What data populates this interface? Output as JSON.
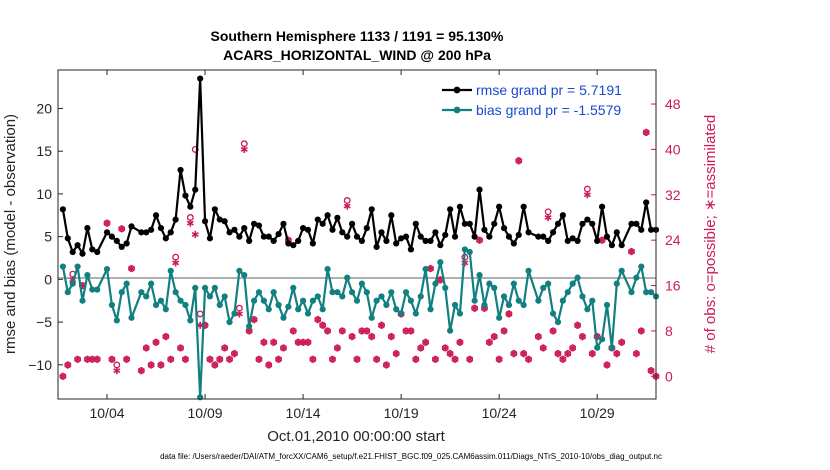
{
  "chart_data": {
    "type": "line",
    "title": "Southern Hemisphere 1133 / 1191 = 95.130%",
    "subtitle": "ACARS_HORIZONTAL_WIND @ 200 hPa",
    "xlabel": "Oct.01,2010 00:00:00 start",
    "ylabel": "rmse and bias (model - observation)",
    "y2label": "# of obs: o=possible; ∗=assimilated",
    "footnote": "data file: /Users/raeder/DAI/ATM_forcXX/CAM6_setup/f.e21.FHIST_BGC.f09_025.CAM6assim.011/Diags_NTrS_2010-10/obs_diag_output.nc",
    "x_unit": "days since Oct.01,2010 00:00:00",
    "xlim": [
      0.5,
      31.0
    ],
    "ylim": [
      -14,
      24.5
    ],
    "y2lim": [
      -4,
      54
    ],
    "xticks": [
      3,
      8,
      13,
      18,
      23,
      28
    ],
    "xticklabels": [
      "10/04",
      "10/09",
      "10/14",
      "10/19",
      "10/24",
      "10/29"
    ],
    "yticks": [
      -10,
      -5,
      0,
      5,
      10,
      15,
      20
    ],
    "yticklabels": [
      "−10",
      "−5",
      "0",
      "5",
      "10",
      "15",
      "20"
    ],
    "y2ticks": [
      0,
      8,
      16,
      24,
      32,
      40,
      48
    ],
    "y2ticklabels": [
      "0",
      "8",
      "16",
      "24",
      "32",
      "40",
      "48"
    ],
    "series": [
      {
        "name": "rmse grand pr = 5.7191",
        "color": "#000000",
        "marker": "circle",
        "x": [
          0.75,
          1.0,
          1.25,
          1.5,
          1.75,
          2.0,
          2.25,
          2.5,
          3.0,
          3.25,
          3.5,
          3.75,
          4.0,
          4.25,
          4.75,
          5.0,
          5.25,
          5.5,
          5.75,
          6.0,
          6.25,
          6.5,
          6.75,
          7.0,
          7.25,
          7.5,
          7.75,
          8.0,
          8.25,
          8.5,
          8.75,
          9.0,
          9.25,
          9.5,
          9.75,
          10.0,
          10.25,
          10.5,
          10.75,
          11.0,
          11.25,
          11.5,
          11.75,
          12.0,
          12.25,
          12.5,
          12.75,
          13.0,
          13.25,
          13.5,
          13.75,
          14.0,
          14.25,
          14.5,
          14.75,
          15.0,
          15.25,
          15.5,
          15.75,
          16.0,
          16.25,
          16.5,
          16.75,
          17.0,
          17.25,
          17.5,
          17.75,
          18.0,
          18.25,
          18.5,
          18.75,
          19.0,
          19.25,
          19.5,
          19.75,
          20.0,
          20.25,
          20.5,
          20.75,
          21.0,
          21.25,
          21.5,
          21.75,
          22.0,
          22.25,
          22.5,
          22.75,
          23.0,
          23.25,
          23.5,
          23.75,
          24.0,
          24.25,
          24.5,
          25.0,
          25.25,
          25.5,
          25.75,
          26.0,
          26.25,
          26.5,
          26.75,
          27.0,
          27.25,
          27.5,
          27.75,
          28.0,
          28.25,
          28.5,
          28.75,
          29.0,
          29.25,
          29.75,
          30.0,
          30.25,
          30.5,
          30.75,
          31.0
        ],
        "y": [
          8.2,
          4.8,
          3.2,
          4.0,
          3.0,
          6.0,
          3.5,
          3.2,
          5.5,
          5.0,
          4.5,
          3.8,
          4.2,
          6.2,
          5.5,
          5.5,
          5.8,
          7.5,
          6.0,
          4.8,
          5.5,
          7.0,
          12.8,
          9.8,
          8.5,
          10.5,
          23.5,
          6.8,
          4.8,
          8.2,
          7.0,
          6.8,
          5.5,
          5.8,
          5.0,
          6.0,
          4.5,
          6.5,
          6.3,
          5.0,
          5.0,
          4.5,
          5.3,
          6.5,
          4.2,
          4.0,
          4.5,
          6.0,
          5.8,
          4.2,
          7.0,
          6.5,
          7.5,
          5.8,
          7.2,
          5.5,
          5.0,
          6.5,
          5.0,
          4.5,
          6.0,
          8.2,
          3.8,
          5.5,
          4.5,
          7.5,
          4.2,
          4.8,
          5.0,
          3.5,
          6.5,
          5.0,
          4.5,
          4.5,
          5.5,
          4.0,
          5.2,
          8.2,
          5.0,
          8.5,
          6.5,
          6.5,
          5.0,
          10.5,
          5.8,
          5.0,
          6.5,
          8.5,
          6.0,
          5.0,
          4.2,
          5.2,
          8.5,
          5.5,
          5.0,
          5.0,
          4.5,
          5.5,
          6.5,
          7.5,
          4.5,
          4.8,
          4.5,
          6.5,
          7.0,
          6.5,
          4.5,
          8.5,
          5.0,
          4.0,
          5.5,
          4.0,
          6.5,
          6.5,
          5.8,
          9.0,
          5.8,
          5.8
        ],
        "axis": "left"
      },
      {
        "name": "bias grand pr = -1.5579",
        "color": "#128080",
        "marker": "circle",
        "x": [
          0.75,
          1.0,
          1.25,
          1.5,
          1.75,
          2.0,
          2.25,
          2.5,
          3.0,
          3.25,
          3.5,
          3.75,
          4.0,
          4.25,
          4.75,
          5.0,
          5.25,
          5.5,
          5.75,
          6.0,
          6.25,
          6.5,
          6.75,
          7.0,
          7.25,
          7.5,
          7.75,
          8.0,
          8.25,
          8.5,
          8.75,
          9.0,
          9.25,
          9.5,
          9.75,
          10.0,
          10.25,
          10.5,
          10.75,
          11.0,
          11.25,
          11.5,
          11.75,
          12.0,
          12.25,
          12.5,
          12.75,
          13.0,
          13.25,
          13.5,
          13.75,
          14.0,
          14.25,
          14.5,
          14.75,
          15.0,
          15.25,
          15.5,
          15.75,
          16.0,
          16.25,
          16.5,
          16.75,
          17.0,
          17.25,
          17.5,
          17.75,
          18.0,
          18.25,
          18.5,
          18.75,
          19.0,
          19.25,
          19.5,
          19.75,
          20.0,
          20.25,
          20.5,
          20.75,
          21.0,
          21.25,
          21.5,
          21.75,
          22.0,
          22.25,
          22.5,
          22.75,
          23.0,
          23.25,
          23.5,
          23.75,
          24.0,
          24.25,
          24.5,
          25.0,
          25.25,
          25.5,
          25.75,
          26.0,
          26.25,
          26.5,
          26.75,
          27.0,
          27.25,
          27.5,
          27.75,
          28.0,
          28.25,
          28.5,
          28.75,
          29.0,
          29.25,
          29.75,
          30.0,
          30.25,
          30.5,
          30.75,
          31.0
        ],
        "y": [
          1.5,
          -1.5,
          -0.5,
          1.5,
          -2.5,
          0.5,
          -1.2,
          -1.2,
          1.2,
          -3.0,
          -4.8,
          -1.5,
          -0.5,
          -4.5,
          -1.5,
          -2.0,
          -0.5,
          -3.0,
          -2.5,
          -3.5,
          1.0,
          -1.5,
          -2.5,
          -3.0,
          -4.8,
          -1.0,
          -13.8,
          -1.0,
          -2.0,
          -1.0,
          -3.0,
          -2.0,
          -5.0,
          -4.0,
          1.0,
          0.5,
          -5.5,
          -2.5,
          -1.5,
          -2.5,
          -3.5,
          -1.5,
          -3.0,
          -4.5,
          -3.2,
          -1.0,
          -3.5,
          -2.5,
          -4.0,
          -2.5,
          -2.0,
          -3.5,
          1.2,
          -1.5,
          -1.5,
          -2.0,
          0.2,
          -1.5,
          -2.5,
          -0.5,
          -1.5,
          -4.5,
          -2.5,
          -2.0,
          -3.0,
          -1.5,
          -3.5,
          -4.0,
          -1.5,
          -2.5,
          -4.0,
          -2.0,
          1.2,
          -3.5,
          -0.5,
          2.0,
          -1.0,
          -6.0,
          -3.0,
          -4.0,
          3.5,
          3.2,
          -2.5,
          0.5,
          -3.0,
          -0.5,
          -1.0,
          -4.5,
          -2.0,
          -3.0,
          -0.5,
          -2.5,
          -3.0,
          1.0,
          -2.5,
          -1.0,
          -0.5,
          -4.0,
          -5.0,
          -2.5,
          -1.5,
          -0.5,
          0.2,
          -2.0,
          -3.5,
          -2.5,
          -8.0,
          -7.0,
          -3.0,
          -8.0,
          -0.5,
          1.0,
          -1.5,
          0.2,
          1.5,
          -1.5,
          -1.5,
          -2.0
        ],
        "axis": "left"
      },
      {
        "name": "possible",
        "color": "#cc1b55",
        "marker": "o",
        "x": [
          0.75,
          1.0,
          1.25,
          1.5,
          1.75,
          2.0,
          2.25,
          2.5,
          3.0,
          3.25,
          3.5,
          3.75,
          4.0,
          4.25,
          4.75,
          5.0,
          5.25,
          5.5,
          5.75,
          6.0,
          6.25,
          6.5,
          6.75,
          7.0,
          7.25,
          7.5,
          7.75,
          8.0,
          8.25,
          8.5,
          8.75,
          9.0,
          9.25,
          9.5,
          9.75,
          10.0,
          10.25,
          10.5,
          10.75,
          11.0,
          11.25,
          11.5,
          11.75,
          12.0,
          12.25,
          12.5,
          12.75,
          13.0,
          13.25,
          13.5,
          13.75,
          14.0,
          14.25,
          14.5,
          14.75,
          15.0,
          15.25,
          15.5,
          15.75,
          16.0,
          16.25,
          16.5,
          16.75,
          17.0,
          17.25,
          17.5,
          17.75,
          18.0,
          18.25,
          18.5,
          18.75,
          19.0,
          19.25,
          19.5,
          19.75,
          20.0,
          20.25,
          20.5,
          20.75,
          21.0,
          21.25,
          21.5,
          21.75,
          22.0,
          22.25,
          22.5,
          22.75,
          23.0,
          23.25,
          23.5,
          23.75,
          24.0,
          24.25,
          24.5,
          25.0,
          25.25,
          25.5,
          25.75,
          26.0,
          26.25,
          26.5,
          26.75,
          27.0,
          27.25,
          27.5,
          27.75,
          28.0,
          28.25,
          28.5,
          28.75,
          29.0,
          29.25,
          29.75,
          30.0,
          30.25,
          30.5,
          30.75,
          31.0
        ],
        "y": [
          0,
          2,
          18,
          3,
          16,
          3,
          3,
          3,
          27,
          3,
          2,
          26,
          3,
          19,
          1,
          5,
          2,
          6,
          2,
          7,
          3,
          21,
          5,
          3,
          28,
          40,
          11,
          9,
          3,
          2,
          3,
          5,
          3,
          4,
          12,
          41,
          8,
          10,
          3,
          6,
          2,
          6,
          3,
          5,
          24,
          8,
          6,
          6,
          6,
          3,
          10,
          9,
          8,
          3,
          5,
          8,
          31,
          7,
          3,
          8,
          8,
          7,
          3,
          9,
          2,
          7,
          4,
          11,
          8,
          8,
          3,
          5,
          6,
          19,
          3,
          17,
          5,
          4,
          3,
          6,
          21,
          3,
          12,
          24,
          12,
          6,
          7,
          3,
          8,
          11,
          4,
          38,
          4,
          3,
          7,
          5,
          29,
          8,
          4,
          3,
          4,
          5,
          9,
          7,
          33,
          4,
          7,
          24,
          2,
          5,
          4,
          6,
          22,
          4,
          8,
          43,
          1,
          0
        ],
        "axis": "right"
      },
      {
        "name": "assimilated",
        "color": "#cc1b55",
        "marker": "*",
        "x": [
          0.75,
          1.0,
          1.25,
          1.5,
          1.75,
          2.0,
          2.25,
          2.5,
          3.0,
          3.25,
          3.5,
          3.75,
          4.0,
          4.25,
          4.75,
          5.0,
          5.25,
          5.5,
          5.75,
          6.0,
          6.25,
          6.5,
          6.75,
          7.0,
          7.25,
          7.5,
          7.75,
          8.0,
          8.25,
          8.5,
          8.75,
          9.0,
          9.25,
          9.5,
          9.75,
          10.0,
          10.25,
          10.5,
          10.75,
          11.0,
          11.25,
          11.5,
          11.75,
          12.0,
          12.25,
          12.5,
          12.75,
          13.0,
          13.25,
          13.5,
          13.75,
          14.0,
          14.25,
          14.5,
          14.75,
          15.0,
          15.25,
          15.5,
          15.75,
          16.0,
          16.25,
          16.5,
          16.75,
          17.0,
          17.25,
          17.5,
          17.75,
          18.0,
          18.25,
          18.5,
          18.75,
          19.0,
          19.25,
          19.5,
          19.75,
          20.0,
          20.25,
          20.5,
          20.75,
          21.0,
          21.25,
          21.5,
          21.75,
          22.0,
          22.25,
          22.5,
          22.75,
          23.0,
          23.25,
          23.5,
          23.75,
          24.0,
          24.25,
          24.5,
          25.0,
          25.25,
          25.5,
          25.75,
          26.0,
          26.25,
          26.5,
          26.75,
          27.0,
          27.25,
          27.5,
          27.75,
          28.0,
          28.25,
          28.5,
          28.75,
          29.0,
          29.25,
          29.75,
          30.0,
          30.25,
          30.5,
          30.75,
          31.0
        ],
        "y": [
          0,
          2,
          17,
          3,
          16,
          3,
          3,
          3,
          27,
          3,
          1,
          26,
          3,
          19,
          1,
          5,
          2,
          6,
          2,
          7,
          3,
          20,
          5,
          3,
          27,
          25,
          9,
          9,
          3,
          2,
          3,
          5,
          3,
          4,
          11,
          40,
          8,
          10,
          3,
          6,
          2,
          6,
          3,
          5,
          24,
          8,
          6,
          6,
          6,
          3,
          10,
          9,
          8,
          3,
          5,
          8,
          30,
          7,
          3,
          8,
          8,
          7,
          3,
          9,
          2,
          7,
          4,
          11,
          8,
          8,
          3,
          5,
          6,
          19,
          3,
          17,
          5,
          4,
          3,
          6,
          20,
          3,
          12,
          24,
          12,
          6,
          7,
          3,
          8,
          11,
          4,
          38,
          4,
          3,
          7,
          5,
          28,
          8,
          4,
          3,
          4,
          5,
          9,
          7,
          32,
          4,
          7,
          24,
          2,
          5,
          4,
          6,
          22,
          4,
          8,
          43,
          1,
          0
        ],
        "axis": "right"
      }
    ],
    "legend": [
      "rmse grand pr = 5.7191",
      "bias grand pr = -1.5579"
    ],
    "legend_position": "top-right",
    "zero_line": true,
    "grid": false
  }
}
